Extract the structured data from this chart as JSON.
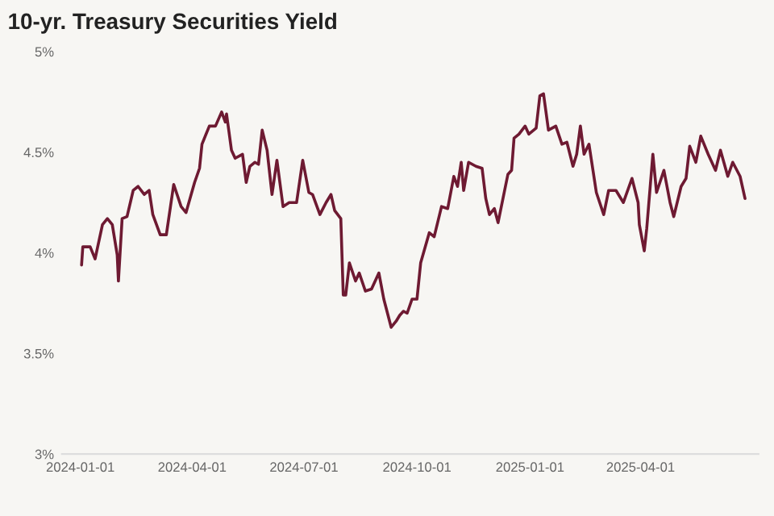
{
  "chart_data": {
    "type": "line",
    "title": "10-yr. Treasury Securities Yield",
    "x": [
      "2024-01-02",
      "2024-01-03",
      "2024-01-09",
      "2024-01-13",
      "2024-01-19",
      "2024-01-23",
      "2024-01-27",
      "2024-01-31",
      "2024-02-01",
      "2024-02-04",
      "2024-02-08",
      "2024-02-13",
      "2024-02-17",
      "2024-02-22",
      "2024-02-26",
      "2024-02-29",
      "2024-03-06",
      "2024-03-11",
      "2024-03-17",
      "2024-03-23",
      "2024-03-27",
      "2024-04-03",
      "2024-04-07",
      "2024-04-09",
      "2024-04-15",
      "2024-04-20",
      "2024-04-25",
      "2024-04-28",
      "2024-04-29",
      "2024-05-03",
      "2024-05-06",
      "2024-05-12",
      "2024-05-15",
      "2024-05-18",
      "2024-05-22",
      "2024-05-25",
      "2024-05-28",
      "2024-06-01",
      "2024-06-05",
      "2024-06-09",
      "2024-06-14",
      "2024-06-19",
      "2024-06-25",
      "2024-06-30",
      "2024-07-05",
      "2024-07-08",
      "2024-07-14",
      "2024-07-19",
      "2024-07-23",
      "2024-07-26",
      "2024-07-31",
      "2024-08-02",
      "2024-08-04",
      "2024-08-07",
      "2024-08-12",
      "2024-08-15",
      "2024-08-20",
      "2024-08-25",
      "2024-08-31",
      "2024-09-04",
      "2024-09-10",
      "2024-09-14",
      "2024-09-17",
      "2024-09-20",
      "2024-09-23",
      "2024-09-27",
      "2024-10-01",
      "2024-10-04",
      "2024-10-11",
      "2024-10-15",
      "2024-10-21",
      "2024-10-26",
      "2024-10-31",
      "2024-11-03",
      "2024-11-06",
      "2024-11-08",
      "2024-11-12",
      "2024-11-18",
      "2024-11-23",
      "2024-11-26",
      "2024-11-29",
      "2024-12-03",
      "2024-12-06",
      "2024-12-14",
      "2024-12-17",
      "2024-12-19",
      "2024-12-23",
      "2024-12-28",
      "2024-12-31",
      "2025-01-06",
      "2025-01-09",
      "2025-01-12",
      "2025-01-16",
      "2025-01-22",
      "2025-01-27",
      "2025-01-31",
      "2025-02-05",
      "2025-02-08",
      "2025-02-11",
      "2025-02-14",
      "2025-02-18",
      "2025-02-24",
      "2025-03-02",
      "2025-03-06",
      "2025-03-12",
      "2025-03-18",
      "2025-03-25",
      "2025-03-30",
      "2025-03-31",
      "2025-04-04",
      "2025-04-06",
      "2025-04-11",
      "2025-04-14",
      "2025-04-20",
      "2025-04-25",
      "2025-04-28",
      "2025-05-04",
      "2025-05-08",
      "2025-05-11",
      "2025-05-16",
      "2025-05-20",
      "2025-05-26",
      "2025-06-01",
      "2025-06-05",
      "2025-06-11",
      "2025-06-15",
      "2025-06-21",
      "2025-06-25"
    ],
    "series": [
      {
        "color": "#6e1a32",
        "values": [
          3.94,
          4.03,
          4.03,
          3.97,
          4.14,
          4.17,
          4.14,
          3.99,
          3.86,
          4.17,
          4.18,
          4.31,
          4.33,
          4.29,
          4.31,
          4.19,
          4.09,
          4.09,
          4.34,
          4.23,
          4.2,
          4.35,
          4.42,
          4.54,
          4.63,
          4.63,
          4.7,
          4.65,
          4.69,
          4.51,
          4.47,
          4.49,
          4.35,
          4.43,
          4.45,
          4.44,
          4.61,
          4.51,
          4.29,
          4.46,
          4.23,
          4.25,
          4.25,
          4.46,
          4.3,
          4.29,
          4.19,
          4.25,
          4.29,
          4.21,
          4.17,
          3.79,
          3.79,
          3.95,
          3.86,
          3.9,
          3.81,
          3.82,
          3.9,
          3.77,
          3.63,
          3.66,
          3.69,
          3.71,
          3.7,
          3.77,
          3.77,
          3.95,
          4.1,
          4.08,
          4.23,
          4.22,
          4.38,
          4.33,
          4.45,
          4.31,
          4.45,
          4.43,
          4.42,
          4.27,
          4.19,
          4.22,
          4.15,
          4.39,
          4.41,
          4.57,
          4.59,
          4.63,
          4.59,
          4.62,
          4.78,
          4.79,
          4.61,
          4.63,
          4.54,
          4.55,
          4.43,
          4.49,
          4.63,
          4.49,
          4.54,
          4.3,
          4.19,
          4.31,
          4.31,
          4.25,
          4.37,
          4.25,
          4.14,
          4.01,
          4.12,
          4.49,
          4.3,
          4.41,
          4.25,
          4.18,
          4.33,
          4.37,
          4.53,
          4.45,
          4.58,
          4.49,
          4.41,
          4.51,
          4.38,
          4.45,
          4.38,
          4.27
        ]
      }
    ],
    "xlim": [
      "2023-12-17",
      "2025-07-06"
    ],
    "xticks": [
      {
        "value": "2024-01-01",
        "label": "2024-01-01"
      },
      {
        "value": "2024-04-01",
        "label": "2024-04-01"
      },
      {
        "value": "2024-07-01",
        "label": "2024-07-01"
      },
      {
        "value": "2024-10-01",
        "label": "2024-10-01"
      },
      {
        "value": "2025-01-01",
        "label": "2025-01-01"
      },
      {
        "value": "2025-04-01",
        "label": "2025-04-01"
      }
    ],
    "ylim": [
      3,
      5
    ],
    "yticks": [
      {
        "value": 3,
        "label": "3%"
      },
      {
        "value": 3.5,
        "label": "3.5%"
      },
      {
        "value": 4,
        "label": "4%"
      },
      {
        "value": 4.5,
        "label": "4.5%"
      },
      {
        "value": 5,
        "label": "5%"
      }
    ],
    "grid": false,
    "legend": false
  }
}
